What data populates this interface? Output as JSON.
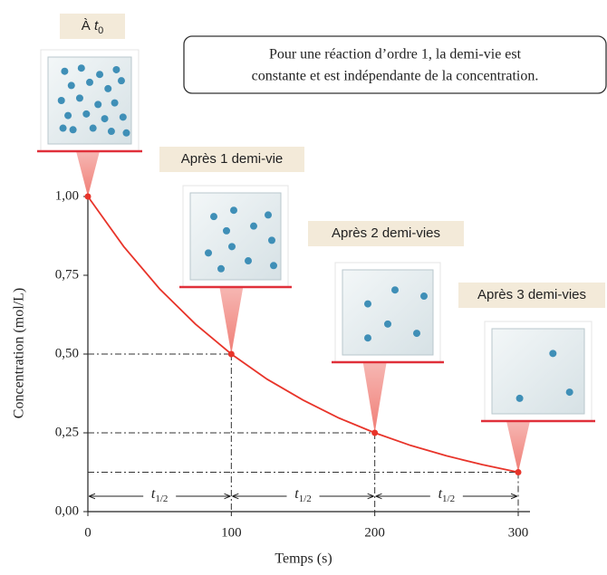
{
  "chart_data": {
    "type": "line",
    "x_label": "Temps (s)",
    "y_label": "Concentration (mol/L)",
    "x": [
      0,
      25,
      50,
      75,
      100,
      125,
      150,
      175,
      200,
      225,
      250,
      275,
      300
    ],
    "series": [
      {
        "color": "#e8342a",
        "values": [
          1.0,
          0.841,
          0.707,
          0.595,
          0.5,
          0.42,
          0.354,
          0.297,
          0.25,
          0.21,
          0.177,
          0.149,
          0.125
        ]
      }
    ],
    "markers": {
      "x": [
        0,
        100,
        200,
        300
      ],
      "values": [
        1.0,
        0.5,
        0.25,
        0.125
      ]
    },
    "xlim": [
      0,
      300
    ],
    "ylim": [
      0,
      1
    ],
    "xticks": [
      0,
      100,
      200,
      300
    ],
    "yticks": [
      {
        "value": 0,
        "label": "0,00"
      },
      {
        "value": 0.25,
        "label": "0,25"
      },
      {
        "value": 0.5,
        "label": "0,50"
      },
      {
        "value": 0.75,
        "label": "0,75"
      },
      {
        "value": 1,
        "label": "1,00"
      }
    ],
    "interval_label": {
      "main": "t",
      "sub": "1/2"
    },
    "stage_labels": [
      {
        "text": "À ",
        "var": "t",
        "sub": "0"
      },
      {
        "text": "Après 1 demi-vie"
      },
      {
        "text": "Après 2 demi-vies"
      },
      {
        "text": "Après 3 demi-vies"
      }
    ],
    "note": [
      "Pour une réaction d’ordre 1, la demi-vie est",
      "constante et est indépendante de la concentration."
    ]
  }
}
